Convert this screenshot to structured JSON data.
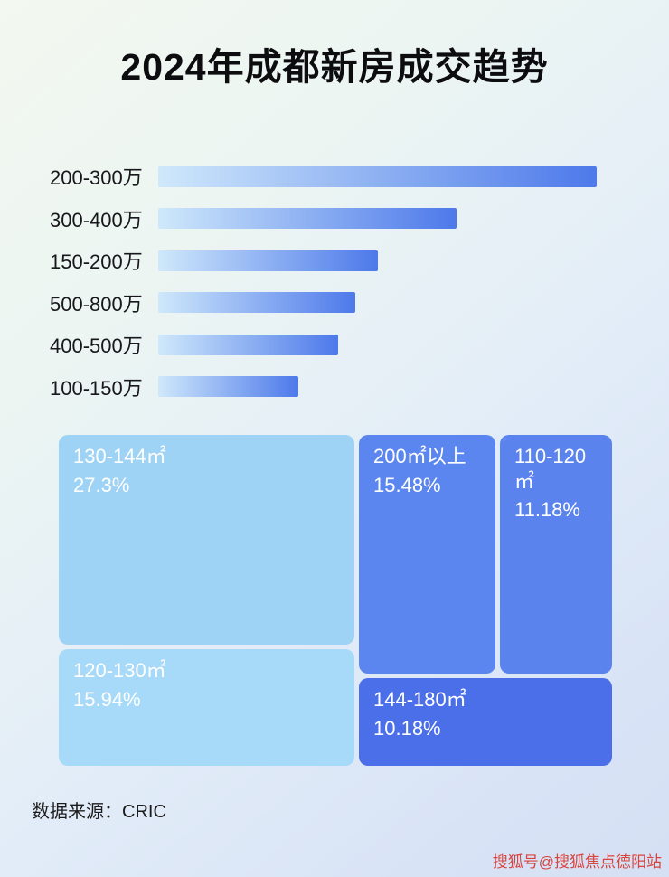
{
  "page": {
    "title": "2024年成都新房成交趋势",
    "source_label": "数据来源：CRIC",
    "watermark": "搜狐号@搜狐焦点德阳站"
  },
  "colors": {
    "bar_gradient_start": "#cfe8fb",
    "bar_gradient_end": "#4d79ea",
    "label_text": "#17171c",
    "block_text": "#ffffff",
    "watermark_red": "#d8453e"
  },
  "chart_data": [
    {
      "type": "bar",
      "orientation": "horizontal",
      "categories": [
        "200-300万",
        "300-400万",
        "150-200万",
        "500-800万",
        "400-500万",
        "100-150万"
      ],
      "values": [
        100,
        68,
        50,
        45,
        41,
        32
      ],
      "value_unit": "relative length, percent of longest bar (no numeric labels shown)",
      "xlim": [
        0,
        100
      ],
      "grid": false,
      "legend": false,
      "data_labels": false
    },
    {
      "type": "treemap",
      "items": [
        {
          "label": "130-144㎡",
          "value": 27.3,
          "value_label": "27.3%",
          "color": "#9ed3f6"
        },
        {
          "label": "120-130㎡",
          "value": 15.94,
          "value_label": "15.94%",
          "color": "#a7daf8"
        },
        {
          "label": "200㎡以上",
          "value": 15.48,
          "value_label": "15.48%",
          "color": "#5c86ef"
        },
        {
          "label": "110-120㎡",
          "value": 11.18,
          "value_label": "11.18%",
          "color": "#5a83ee"
        },
        {
          "label": "144-180㎡",
          "value": 10.18,
          "value_label": "10.18%",
          "color": "#4b6fe9"
        }
      ],
      "legend": false
    }
  ]
}
